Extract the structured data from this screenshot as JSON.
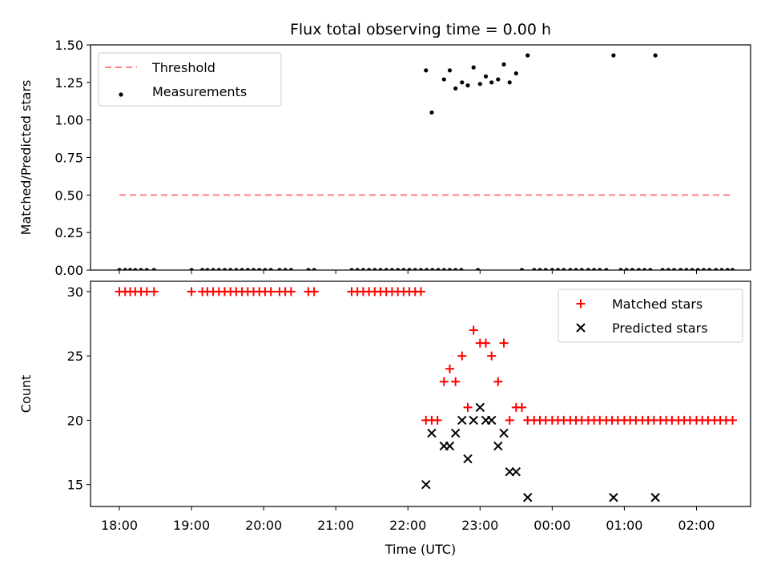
{
  "chart_data": {
    "title": "Flux total observing time = 0.00 h",
    "xlabel": "Time (UTC)",
    "x_tick_labels": [
      "18:00",
      "19:00",
      "20:00",
      "21:00",
      "22:00",
      "23:00",
      "00:00",
      "01:00",
      "02:00"
    ],
    "x_unit": "hours since 18:00 UTC (x tick labels wrap past midnight)",
    "xlim": [
      -0.4,
      8.75
    ],
    "panels": [
      {
        "type": "scatter",
        "ylabel": "Matched/Predicted stars",
        "ylim": [
          0,
          1.5
        ],
        "y_ticks": [
          "0.00",
          "0.25",
          "0.50",
          "0.75",
          "1.00",
          "1.25",
          "1.50"
        ],
        "y_tick_values": [
          0,
          0.25,
          0.5,
          0.75,
          1.0,
          1.25,
          1.5
        ],
        "legend_position": "upper-left",
        "legend": [
          {
            "label": "Threshold",
            "style": "dashed-line",
            "color": "#ff7f7f"
          },
          {
            "label": "Measurements",
            "style": "dot",
            "color": "#000000"
          }
        ],
        "threshold": {
          "name": "Threshold",
          "y": 0.5,
          "x_start": 0.0,
          "x_end": 8.5,
          "color": "#ff7f7f"
        },
        "series": [
          {
            "name": "Measurements",
            "color": "#000000",
            "marker": "dot",
            "points": [
              [
                0.0,
                0
              ],
              [
                0.08,
                0
              ],
              [
                0.15,
                0
              ],
              [
                0.22,
                0
              ],
              [
                0.3,
                0
              ],
              [
                0.38,
                0
              ],
              [
                0.48,
                0
              ],
              [
                1.0,
                0
              ],
              [
                1.15,
                0
              ],
              [
                1.22,
                0
              ],
              [
                1.3,
                0
              ],
              [
                1.38,
                0
              ],
              [
                1.46,
                0
              ],
              [
                1.54,
                0
              ],
              [
                1.62,
                0
              ],
              [
                1.7,
                0
              ],
              [
                1.78,
                0
              ],
              [
                1.86,
                0
              ],
              [
                1.94,
                0
              ],
              [
                2.02,
                0
              ],
              [
                2.1,
                0
              ],
              [
                2.22,
                0
              ],
              [
                2.3,
                0
              ],
              [
                2.38,
                0
              ],
              [
                2.62,
                0
              ],
              [
                2.7,
                0
              ],
              [
                3.22,
                0
              ],
              [
                3.3,
                0
              ],
              [
                3.38,
                0
              ],
              [
                3.46,
                0
              ],
              [
                3.54,
                0
              ],
              [
                3.62,
                0
              ],
              [
                3.7,
                0
              ],
              [
                3.78,
                0
              ],
              [
                3.86,
                0
              ],
              [
                3.94,
                0
              ],
              [
                4.02,
                0
              ],
              [
                4.1,
                0
              ],
              [
                4.18,
                0
              ],
              [
                4.26,
                0
              ],
              [
                4.34,
                0
              ],
              [
                4.42,
                0
              ],
              [
                4.5,
                0
              ],
              [
                4.58,
                0
              ],
              [
                4.66,
                0
              ],
              [
                4.74,
                0
              ],
              [
                4.97,
                0
              ],
              [
                4.25,
                1.33
              ],
              [
                4.33,
                1.05
              ],
              [
                4.5,
                1.27
              ],
              [
                4.58,
                1.33
              ],
              [
                4.66,
                1.21
              ],
              [
                4.75,
                1.25
              ],
              [
                4.83,
                1.23
              ],
              [
                4.91,
                1.35
              ],
              [
                5.0,
                1.24
              ],
              [
                5.08,
                1.29
              ],
              [
                5.16,
                1.25
              ],
              [
                5.25,
                1.27
              ],
              [
                5.33,
                1.37
              ],
              [
                5.41,
                1.25
              ],
              [
                5.5,
                1.31
              ],
              [
                5.58,
                0
              ],
              [
                5.66,
                1.43
              ],
              [
                5.75,
                0
              ],
              [
                5.83,
                0
              ],
              [
                5.91,
                0
              ],
              [
                6.0,
                0
              ],
              [
                6.08,
                0
              ],
              [
                6.16,
                0
              ],
              [
                6.25,
                0
              ],
              [
                6.33,
                0
              ],
              [
                6.41,
                0
              ],
              [
                6.5,
                0
              ],
              [
                6.58,
                0
              ],
              [
                6.66,
                0
              ],
              [
                6.75,
                0
              ],
              [
                6.85,
                1.43
              ],
              [
                6.95,
                0
              ],
              [
                7.03,
                0
              ],
              [
                7.11,
                0
              ],
              [
                7.2,
                0
              ],
              [
                7.28,
                0
              ],
              [
                7.36,
                0
              ],
              [
                7.43,
                1.43
              ],
              [
                7.53,
                0
              ],
              [
                7.61,
                0
              ],
              [
                7.69,
                0
              ],
              [
                7.78,
                0
              ],
              [
                7.86,
                0
              ],
              [
                7.94,
                0
              ],
              [
                8.02,
                0
              ],
              [
                8.1,
                0
              ],
              [
                8.18,
                0
              ],
              [
                8.27,
                0
              ],
              [
                8.35,
                0
              ],
              [
                8.43,
                0
              ],
              [
                8.5,
                0
              ]
            ]
          }
        ]
      },
      {
        "type": "scatter",
        "ylabel": "Count",
        "ylim": [
          13.3,
          30.8
        ],
        "y_ticks": [
          "15",
          "20",
          "25",
          "30"
        ],
        "y_tick_values": [
          15,
          20,
          25,
          30
        ],
        "legend_position": "upper-right",
        "legend": [
          {
            "label": "Matched stars",
            "style": "plus",
            "color": "#ff0000"
          },
          {
            "label": "Predicted stars",
            "style": "x",
            "color": "#000000"
          }
        ],
        "series": [
          {
            "name": "Matched stars",
            "color": "#ff0000",
            "marker": "plus",
            "points": [
              [
                0.0,
                30
              ],
              [
                0.08,
                30
              ],
              [
                0.15,
                30
              ],
              [
                0.22,
                30
              ],
              [
                0.3,
                30
              ],
              [
                0.38,
                30
              ],
              [
                0.48,
                30
              ],
              [
                1.0,
                30
              ],
              [
                1.15,
                30
              ],
              [
                1.22,
                30
              ],
              [
                1.3,
                30
              ],
              [
                1.38,
                30
              ],
              [
                1.46,
                30
              ],
              [
                1.54,
                30
              ],
              [
                1.62,
                30
              ],
              [
                1.7,
                30
              ],
              [
                1.78,
                30
              ],
              [
                1.86,
                30
              ],
              [
                1.94,
                30
              ],
              [
                2.02,
                30
              ],
              [
                2.1,
                30
              ],
              [
                2.22,
                30
              ],
              [
                2.3,
                30
              ],
              [
                2.38,
                30
              ],
              [
                2.62,
                30
              ],
              [
                2.7,
                30
              ],
              [
                3.22,
                30
              ],
              [
                3.3,
                30
              ],
              [
                3.38,
                30
              ],
              [
                3.46,
                30
              ],
              [
                3.54,
                30
              ],
              [
                3.62,
                30
              ],
              [
                3.7,
                30
              ],
              [
                3.78,
                30
              ],
              [
                3.86,
                30
              ],
              [
                3.94,
                30
              ],
              [
                4.02,
                30
              ],
              [
                4.1,
                30
              ],
              [
                4.18,
                30
              ],
              [
                4.25,
                20
              ],
              [
                4.33,
                20
              ],
              [
                4.41,
                20
              ],
              [
                4.5,
                23
              ],
              [
                4.58,
                24
              ],
              [
                4.66,
                23
              ],
              [
                4.75,
                25
              ],
              [
                4.83,
                21
              ],
              [
                4.91,
                27
              ],
              [
                5.0,
                26
              ],
              [
                5.08,
                26
              ],
              [
                5.16,
                25
              ],
              [
                5.25,
                23
              ],
              [
                5.33,
                26
              ],
              [
                5.41,
                20
              ],
              [
                5.5,
                21
              ],
              [
                5.58,
                21
              ],
              [
                5.66,
                20
              ],
              [
                5.75,
                20
              ],
              [
                5.83,
                20
              ],
              [
                5.91,
                20
              ],
              [
                6.0,
                20
              ],
              [
                6.08,
                20
              ],
              [
                6.16,
                20
              ],
              [
                6.25,
                20
              ],
              [
                6.33,
                20
              ],
              [
                6.41,
                20
              ],
              [
                6.5,
                20
              ],
              [
                6.58,
                20
              ],
              [
                6.66,
                20
              ],
              [
                6.75,
                20
              ],
              [
                6.83,
                20
              ],
              [
                6.91,
                20
              ],
              [
                7.0,
                20
              ],
              [
                7.08,
                20
              ],
              [
                7.16,
                20
              ],
              [
                7.25,
                20
              ],
              [
                7.33,
                20
              ],
              [
                7.41,
                20
              ],
              [
                7.5,
                20
              ],
              [
                7.58,
                20
              ],
              [
                7.66,
                20
              ],
              [
                7.75,
                20
              ],
              [
                7.83,
                20
              ],
              [
                7.91,
                20
              ],
              [
                8.0,
                20
              ],
              [
                8.08,
                20
              ],
              [
                8.16,
                20
              ],
              [
                8.25,
                20
              ],
              [
                8.33,
                20
              ],
              [
                8.41,
                20
              ],
              [
                8.5,
                20
              ]
            ]
          },
          {
            "name": "Predicted stars",
            "color": "#000000",
            "marker": "x",
            "points": [
              [
                4.25,
                15
              ],
              [
                4.33,
                19
              ],
              [
                4.5,
                18
              ],
              [
                4.58,
                18
              ],
              [
                4.66,
                19
              ],
              [
                4.75,
                20
              ],
              [
                4.83,
                17
              ],
              [
                4.91,
                20
              ],
              [
                5.0,
                21
              ],
              [
                5.08,
                20
              ],
              [
                5.16,
                20
              ],
              [
                5.25,
                18
              ],
              [
                5.33,
                19
              ],
              [
                5.41,
                16
              ],
              [
                5.5,
                16
              ],
              [
                5.66,
                14
              ],
              [
                6.85,
                14
              ],
              [
                7.43,
                14
              ]
            ]
          }
        ]
      }
    ]
  }
}
